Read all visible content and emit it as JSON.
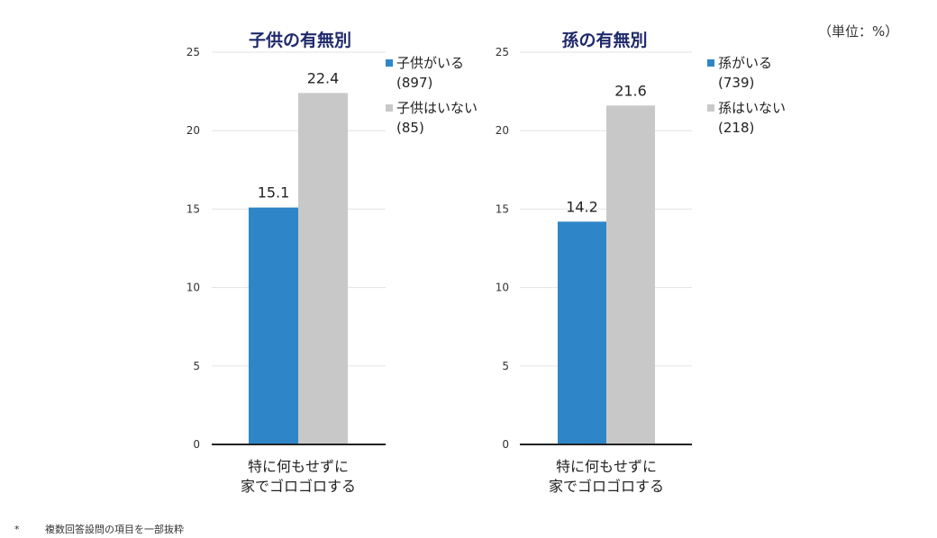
{
  "unit_label": "（単位：%）",
  "footnote": {
    "mark": "*",
    "text": "複数回答設問の項目を一部抜粋"
  },
  "chart_data": [
    {
      "type": "bar",
      "title": "子供の有無別",
      "categories": [
        "特に何もせずに\n家でゴロゴロする"
      ],
      "series": [
        {
          "name": "子供がいる",
          "n": "(897)",
          "values": [
            15.1
          ],
          "color": "#2e86c8"
        },
        {
          "name": "子供はいない",
          "n": "(85)",
          "values": [
            22.4
          ],
          "color": "#c8c8c8"
        }
      ],
      "ylim": [
        0,
        25
      ],
      "yticks": [
        "0",
        "5",
        "10",
        "15",
        "20",
        "25"
      ],
      "grid": true,
      "legend": "right"
    },
    {
      "type": "bar",
      "title": "孫の有無別",
      "categories": [
        "特に何もせずに\n家でゴロゴロする"
      ],
      "series": [
        {
          "name": "孫がいる",
          "n": "(739)",
          "values": [
            14.2
          ],
          "color": "#2e86c8"
        },
        {
          "name": "孫はいない",
          "n": "(218)",
          "values": [
            21.6
          ],
          "color": "#c8c8c8"
        }
      ],
      "ylim": [
        0,
        25
      ],
      "yticks": [
        "0",
        "5",
        "10",
        "15",
        "20",
        "25"
      ],
      "grid": true,
      "legend": "right"
    }
  ]
}
